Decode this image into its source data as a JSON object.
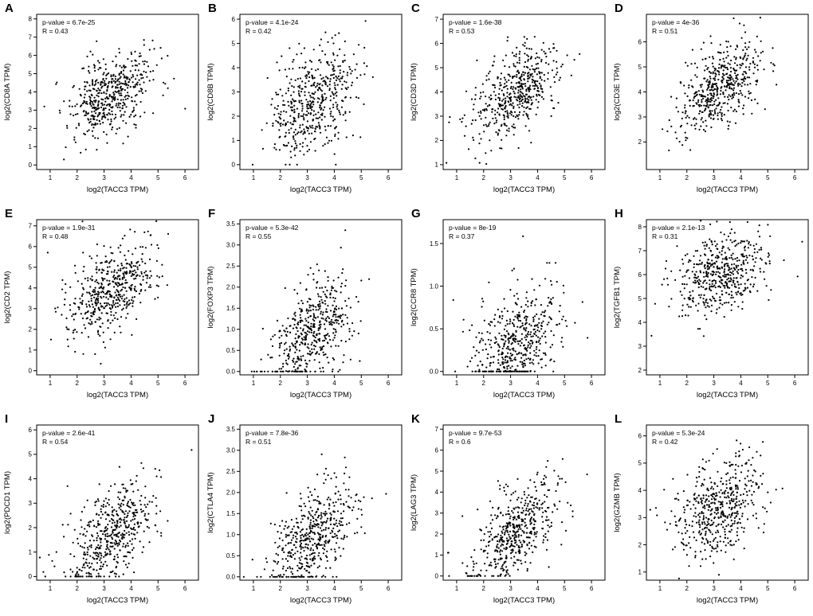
{
  "figure": {
    "shared_xlabel": "log2(TACC3 TPM)",
    "point_color": "#000000",
    "background": "#ffffff"
  },
  "chart_data": [
    {
      "type": "scatter",
      "panel": "A",
      "xlabel": "log2(TACC3 TPM)",
      "ylabel": "log2(CD8A TPM)",
      "annotations": [
        "p-value = 6.7e-25",
        "R = 0.43"
      ],
      "R": 0.43,
      "p_value": "6.7e-25",
      "xlim": [
        0.5,
        6.5
      ],
      "ylim": [
        -0.25,
        8.25
      ],
      "xticks": [
        1,
        2,
        3,
        4,
        5,
        6
      ],
      "yticks": [
        0,
        1,
        2,
        3,
        4,
        5,
        6,
        7,
        8
      ],
      "n_points": 500,
      "x_center": 3.2,
      "x_sd": 0.8,
      "y_center": 3.8,
      "y_sd": 1.2,
      "y_floor": 0,
      "seed": 101
    },
    {
      "type": "scatter",
      "panel": "B",
      "xlabel": "log2(TACC3 TPM)",
      "ylabel": "log2(CD8B TPM)",
      "annotations": [
        "p-value = 4.1e-24",
        "R = 0.42"
      ],
      "R": 0.42,
      "p_value": "4.1e-24",
      "xlim": [
        0.5,
        6.5
      ],
      "ylim": [
        -0.2,
        6.2
      ],
      "xticks": [
        1,
        2,
        3,
        4,
        5,
        6
      ],
      "yticks": [
        0,
        1,
        2,
        3,
        4,
        5,
        6
      ],
      "n_points": 500,
      "x_center": 3.2,
      "x_sd": 0.8,
      "y_center": 2.6,
      "y_sd": 1.1,
      "y_floor": 0,
      "seed": 102
    },
    {
      "type": "scatter",
      "panel": "C",
      "xlabel": "log2(TACC3 TPM)",
      "ylabel": "log2(CD3D TPM)",
      "annotations": [
        "p-value = 1.6e-38",
        "R = 0.53"
      ],
      "R": 0.53,
      "p_value": "1.6e-38",
      "xlim": [
        0.5,
        6.5
      ],
      "ylim": [
        0.8,
        7.2
      ],
      "xticks": [
        1,
        2,
        3,
        4,
        5,
        6
      ],
      "yticks": [
        1,
        2,
        3,
        4,
        5,
        6,
        7
      ],
      "n_points": 500,
      "x_center": 3.2,
      "x_sd": 0.8,
      "y_center": 4.0,
      "y_sd": 1.0,
      "y_floor": null,
      "seed": 103
    },
    {
      "type": "scatter",
      "panel": "D",
      "xlabel": "log2(TACC3 TPM)",
      "ylabel": "log2(CD3E TPM)",
      "annotations": [
        "p-value = 4e-36",
        "R = 0.51"
      ],
      "R": 0.51,
      "p_value": "4e-36",
      "xlim": [
        0.5,
        6.5
      ],
      "ylim": [
        0.9,
        7.1
      ],
      "xticks": [
        1,
        2,
        3,
        4,
        5,
        6
      ],
      "yticks": [
        2,
        3,
        4,
        5,
        6
      ],
      "n_points": 500,
      "x_center": 3.2,
      "x_sd": 0.8,
      "y_center": 4.2,
      "y_sd": 0.95,
      "y_floor": null,
      "seed": 104
    },
    {
      "type": "scatter",
      "panel": "E",
      "xlabel": "log2(TACC3 TPM)",
      "ylabel": "log2(CD2 TPM)",
      "annotations": [
        "p-value = 1.9e-31",
        "R = 0.48"
      ],
      "R": 0.48,
      "p_value": "1.9e-31",
      "xlim": [
        0.5,
        6.5
      ],
      "ylim": [
        -0.2,
        7.3
      ],
      "xticks": [
        1,
        2,
        3,
        4,
        5,
        6
      ],
      "yticks": [
        0,
        1,
        2,
        3,
        4,
        5,
        6,
        7
      ],
      "n_points": 500,
      "x_center": 3.2,
      "x_sd": 0.8,
      "y_center": 3.9,
      "y_sd": 1.15,
      "y_floor": 0,
      "seed": 105
    },
    {
      "type": "scatter",
      "panel": "F",
      "xlabel": "log2(TACC3 TPM)",
      "ylabel": "log2(FOXP3 TPM)",
      "annotations": [
        "p-value = 5.3e-42",
        "R = 0.55"
      ],
      "R": 0.55,
      "p_value": "5.3e-42",
      "xlim": [
        0.5,
        6.5
      ],
      "ylim": [
        -0.08,
        3.6
      ],
      "xticks": [
        1,
        2,
        3,
        4,
        5,
        6
      ],
      "yticks": [
        0,
        0.5,
        1,
        1.5,
        2,
        2.5,
        3,
        3.5
      ],
      "n_points": 500,
      "x_center": 3.2,
      "x_sd": 0.8,
      "y_center": 0.95,
      "y_sd": 0.7,
      "y_floor": 0,
      "seed": 106
    },
    {
      "type": "scatter",
      "panel": "G",
      "xlabel": "log2(TACC3 TPM)",
      "ylabel": "log2(CCR8 TPM)",
      "annotations": [
        "p-value = 8e-19",
        "R = 0.37"
      ],
      "R": 0.37,
      "p_value": "8e-19",
      "xlim": [
        0.5,
        6.5
      ],
      "ylim": [
        -0.04,
        1.78
      ],
      "xticks": [
        1,
        2,
        3,
        4,
        5,
        6
      ],
      "yticks": [
        0,
        0.5,
        1,
        1.5
      ],
      "n_points": 500,
      "x_center": 3.2,
      "x_sd": 0.8,
      "y_center": 0.3,
      "y_sd": 0.34,
      "y_floor": 0,
      "seed": 107
    },
    {
      "type": "scatter",
      "panel": "H",
      "xlabel": "log2(TACC3 TPM)",
      "ylabel": "log2(TGFB1 TPM)",
      "annotations": [
        "p-value = 2.1e-13",
        "R = 0.31"
      ],
      "R": 0.31,
      "p_value": "2.1e-13",
      "xlim": [
        0.5,
        6.5
      ],
      "ylim": [
        1.8,
        8.3
      ],
      "xticks": [
        1,
        2,
        3,
        4,
        5,
        6
      ],
      "yticks": [
        2,
        3,
        4,
        5,
        6,
        7,
        8
      ],
      "n_points": 500,
      "x_center": 3.2,
      "x_sd": 0.8,
      "y_center": 6.0,
      "y_sd": 0.85,
      "y_floor": null,
      "seed": 108
    },
    {
      "type": "scatter",
      "panel": "I",
      "xlabel": "log2(TACC3 TPM)",
      "ylabel": "log2(PDCD1 TPM)",
      "annotations": [
        "p-value = 2.6e-41",
        "R = 0.54"
      ],
      "R": 0.54,
      "p_value": "2.6e-41",
      "xlim": [
        0.5,
        6.5
      ],
      "ylim": [
        -0.15,
        6.2
      ],
      "xticks": [
        1,
        2,
        3,
        4,
        5,
        6
      ],
      "yticks": [
        0,
        1,
        2,
        3,
        4,
        5,
        6
      ],
      "n_points": 500,
      "x_center": 3.2,
      "x_sd": 0.8,
      "y_center": 1.75,
      "y_sd": 1.1,
      "y_floor": 0,
      "seed": 109
    },
    {
      "type": "scatter",
      "panel": "J",
      "xlabel": "log2(TACC3 TPM)",
      "ylabel": "log2(CTLA4 TPM)",
      "annotations": [
        "p-value = 7.8e-36",
        "R = 0.51"
      ],
      "R": 0.51,
      "p_value": "7.8e-36",
      "xlim": [
        0.5,
        6.5
      ],
      "ylim": [
        -0.08,
        3.6
      ],
      "xticks": [
        1,
        2,
        3,
        4,
        5,
        6
      ],
      "yticks": [
        0,
        0.5,
        1,
        1.5,
        2,
        2.5,
        3,
        3.5
      ],
      "n_points": 500,
      "x_center": 3.2,
      "x_sd": 0.8,
      "y_center": 0.95,
      "y_sd": 0.65,
      "y_floor": 0,
      "seed": 110
    },
    {
      "type": "scatter",
      "panel": "K",
      "xlabel": "log2(TACC3 TPM)",
      "ylabel": "log2(LAG3 TPM)",
      "annotations": [
        "p-value = 9.7e-53",
        "R = 0.6"
      ],
      "R": 0.6,
      "p_value": "9.7e-53",
      "xlim": [
        0.5,
        6.5
      ],
      "ylim": [
        -0.2,
        7.2
      ],
      "xticks": [
        1,
        2,
        3,
        4,
        5,
        6
      ],
      "yticks": [
        0,
        1,
        2,
        3,
        4,
        5,
        6,
        7
      ],
      "n_points": 500,
      "x_center": 3.2,
      "x_sd": 0.8,
      "y_center": 2.2,
      "y_sd": 1.3,
      "y_floor": 0,
      "seed": 111
    },
    {
      "type": "scatter",
      "panel": "L",
      "xlabel": "log2(TACC3 TPM)",
      "ylabel": "log2(GZMB TPM)",
      "annotations": [
        "p-value = 5.3e-24",
        "R = 0.42"
      ],
      "R": 0.42,
      "p_value": "5.3e-24",
      "xlim": [
        0.5,
        6.5
      ],
      "ylim": [
        0.7,
        6.4
      ],
      "xticks": [
        1,
        2,
        3,
        4,
        5,
        6
      ],
      "yticks": [
        1,
        2,
        3,
        4,
        5,
        6
      ],
      "n_points": 500,
      "x_center": 3.2,
      "x_sd": 0.8,
      "y_center": 3.3,
      "y_sd": 0.95,
      "y_floor": null,
      "seed": 112
    }
  ]
}
